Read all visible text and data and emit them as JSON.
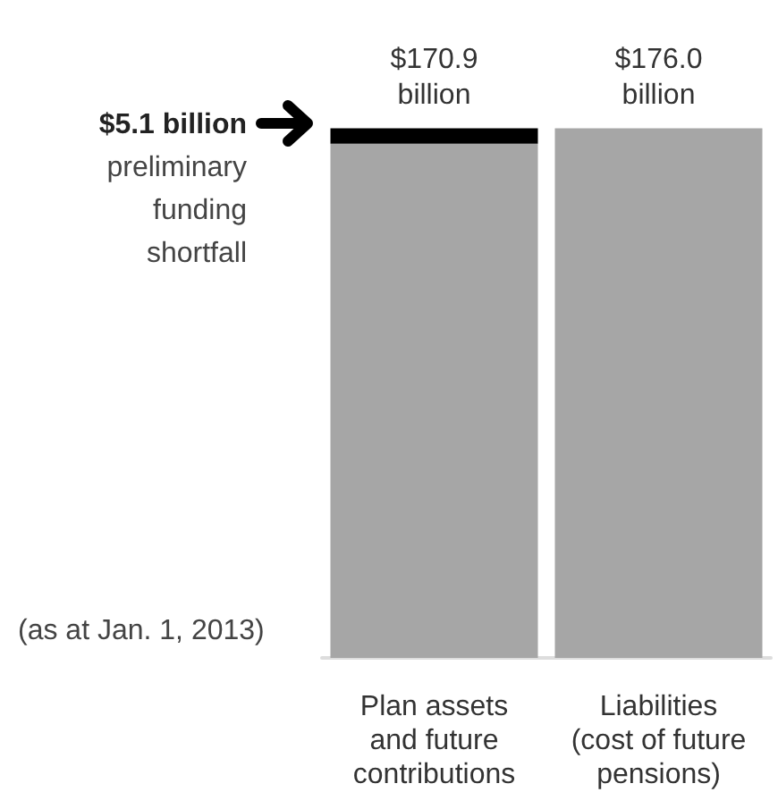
{
  "chart_data": {
    "type": "bar",
    "stacked": true,
    "tick_labels": "x",
    "categories": [
      "Plan assets\nand future\ncontributions",
      "Liabilities\n(cost of future\npensions)"
    ],
    "series": [
      {
        "color": "#a6a6a6",
        "values": [
          170900000000,
          176000000000
        ],
        "value_labels": [
          "$170.9\nbillion",
          "$176.0\nbillion"
        ]
      },
      {
        "color": "#000000",
        "values": [
          5100000000,
          null
        ]
      }
    ],
    "annotations": [
      "$5.1 billion",
      "preliminary\nfunding\nshortfall",
      "(as at Jan. 1, 2013)"
    ]
  }
}
